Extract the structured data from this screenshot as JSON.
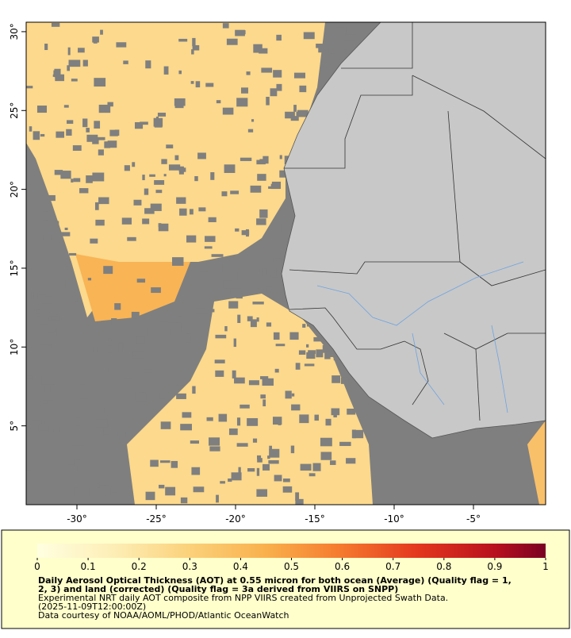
{
  "map": {
    "xlim": [
      -33.2,
      -0.45
    ],
    "ylim": [
      0,
      30.6
    ],
    "xticks": [
      {
        "value": -30,
        "label": "-30°"
      },
      {
        "value": -25,
        "label": "-25°"
      },
      {
        "value": -20,
        "label": "-20°"
      },
      {
        "value": -15,
        "label": "-15°"
      },
      {
        "value": -10,
        "label": "-10°"
      },
      {
        "value": -5,
        "label": "-5°"
      }
    ],
    "yticks": [
      {
        "value": 5,
        "label": "5°"
      },
      {
        "value": 10,
        "label": "10°"
      },
      {
        "value": 15,
        "label": "15°"
      },
      {
        "value": 20,
        "label": "20°"
      },
      {
        "value": 25,
        "label": "25°"
      },
      {
        "value": 30,
        "label": "30°"
      }
    ]
  },
  "colorbar": {
    "lim": [
      0,
      1
    ],
    "ticks": [
      0,
      0.1,
      0.2,
      0.3,
      0.4,
      0.5,
      0.6,
      0.7,
      0.8,
      0.9,
      1
    ]
  },
  "caption": {
    "title_lines": [
      "Daily Aerosol Optical Thickness (AOT) at 0.55 micron for both ocean (Average) (Quality flag = 1,",
      "2, 3) and land (corrected) (Quality flag = 3a derived from VIIRS on SNPP)"
    ],
    "lines": [
      "Experimental NRT daily AOT composite from NPP VIIRS created from Unprojected Swath Data.",
      "(2025-11-09T12:00:00Z)",
      "Data courtesy of NOAA/AOML/PHOD/Atlantic OceanWatch"
    ]
  }
}
